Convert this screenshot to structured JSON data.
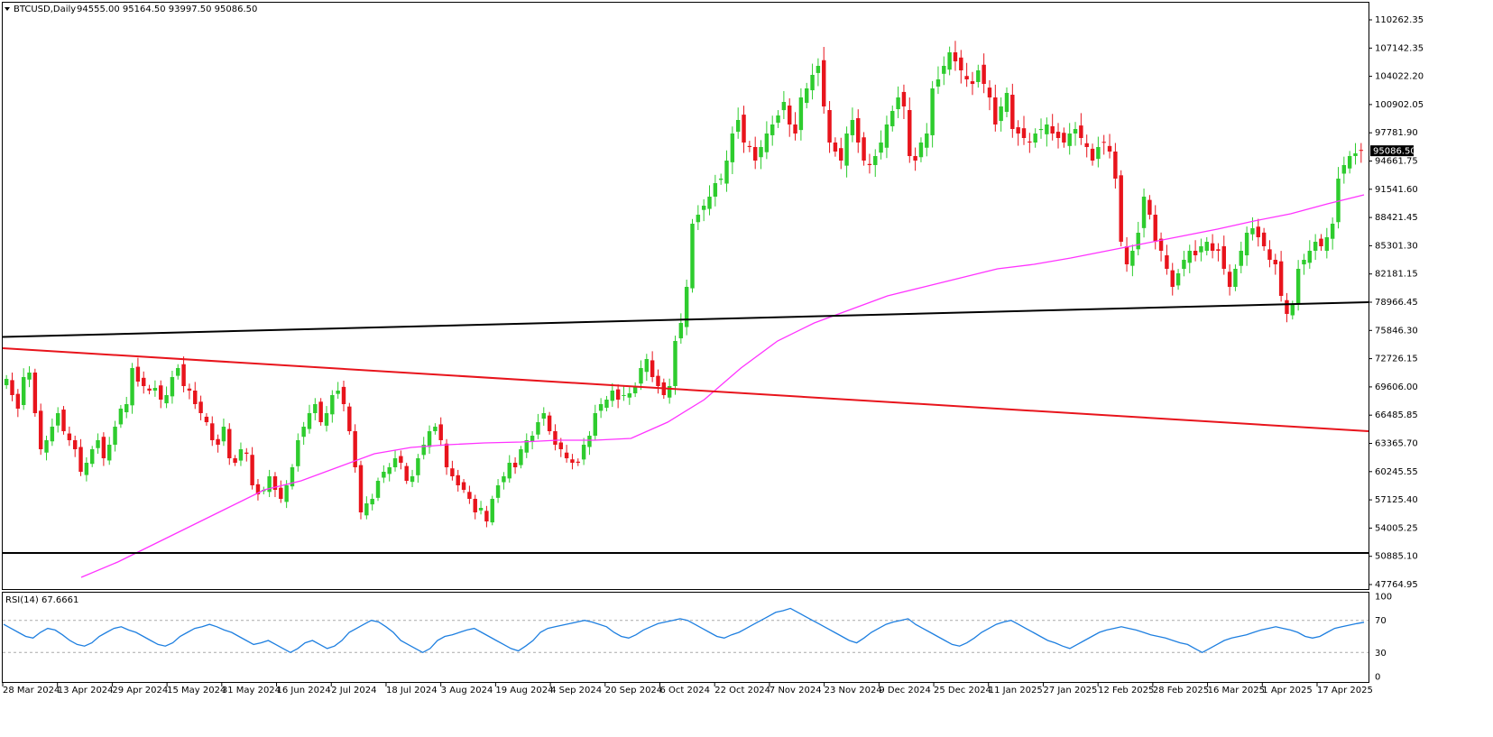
{
  "header": {
    "symbol_label": "BTCUSD,Daily",
    "ohlc_label": "94555.00 95164.50 93997.50 95086.50"
  },
  "rsi_panel": {
    "label": "RSI(14) 67.6661",
    "levels": [
      "100",
      "70",
      "30",
      "0"
    ]
  },
  "price_axis": {
    "ticks": [
      "110262.35",
      "107142.35",
      "104022.20",
      "100902.05",
      "97781.90",
      "94661.75",
      "91541.60",
      "88421.45",
      "85301.30",
      "82181.15",
      "78966.45",
      "75846.30",
      "72726.15",
      "69606.00",
      "66485.85",
      "63365.70",
      "60245.55",
      "57125.40",
      "54005.25",
      "50885.10",
      "47764.95"
    ],
    "current_price_label": "95086.50"
  },
  "time_axis": {
    "ticks": [
      "28 Mar 2024",
      "13 Apr 2024",
      "29 Apr 2024",
      "15 May 2024",
      "31 May 2024",
      "16 Jun 2024",
      "2 Jul 2024",
      "18 Jul 2024",
      "3 Aug 2024",
      "19 Aug 2024",
      "4 Sep 2024",
      "20 Sep 2024",
      "6 Oct 2024",
      "22 Oct 2024",
      "7 Nov 2024",
      "23 Nov 2024",
      "9 Dec 2024",
      "25 Dec 2024",
      "11 Jan 2025",
      "27 Jan 2025",
      "12 Feb 2025",
      "28 Feb 2025",
      "16 Mar 2025",
      "1 Apr 2025",
      "17 Apr 2025"
    ]
  },
  "colors": {
    "up_candle": "#2ecc2e",
    "down_candle": "#e8141c",
    "ma_line": "#ff33ff",
    "rsi_line": "#1e7fe0",
    "trendline_red": "#e8141c",
    "trendline_black": "#000000",
    "grid": "#aaaaaa"
  },
  "chart_data": {
    "type": "candlestick",
    "symbol": "BTCUSD",
    "timeframe": "Daily",
    "ylim": [
      46500,
      111500
    ],
    "closes": [
      69800,
      68000,
      66500,
      70000,
      70500,
      66000,
      62000,
      63000,
      64500,
      66000,
      64000,
      63000,
      62000,
      59500,
      60500,
      62000,
      63000,
      61000,
      62500,
      64500,
      66500,
      67000,
      71000,
      69500,
      69000,
      68500,
      68800,
      67500,
      68000,
      70000,
      71000,
      69000,
      68500,
      67000,
      66000,
      65000,
      63000,
      62500,
      64500,
      61000,
      60500,
      62000,
      61500,
      58000,
      57000,
      57500,
      59000,
      57500,
      56500,
      58000,
      60000,
      63000,
      64500,
      66000,
      67000,
      65000,
      66000,
      68000,
      68500,
      67000,
      64000,
      60000,
      55000,
      56000,
      56500,
      58500,
      59500,
      60000,
      61000,
      60500,
      58500,
      59000,
      61000,
      62500,
      64000,
      64500,
      63000,
      60000,
      59000,
      58000,
      57500,
      56500,
      55000,
      55500,
      54000,
      56500,
      58000,
      59000,
      60500,
      60000,
      62000,
      63000,
      63500,
      65000,
      66000,
      64000,
      62500,
      62000,
      61000,
      60500,
      60500,
      62500,
      63500,
      66000,
      67000,
      67500,
      68500,
      67500,
      68000,
      68200,
      69000,
      71000,
      72000,
      70000,
      69000,
      68000,
      69000,
      74000,
      76000,
      80000,
      87000,
      88000,
      89000,
      90000,
      91500,
      92000,
      94000,
      97000,
      98500,
      96000,
      95500,
      94000,
      95500,
      97000,
      98000,
      99000,
      100500,
      98000,
      97000,
      101000,
      102000,
      103500,
      104500,
      100000,
      96000,
      95000,
      94000,
      97000,
      98500,
      96000,
      94000,
      93500,
      94500,
      96000,
      98000,
      99500,
      101000,
      100000,
      94500,
      94000,
      96000,
      97000,
      102000,
      103000,
      104500,
      106000,
      105000,
      104000,
      103000,
      102500,
      104000,
      102500,
      101000,
      98000,
      100000,
      101500,
      97500,
      97000,
      96500,
      96000,
      97000,
      97500,
      98000,
      97000,
      96500,
      96000,
      97000,
      97500,
      96500,
      95500,
      94000,
      95500,
      96000,
      95000,
      92000,
      85000,
      82500,
      84000,
      86000,
      90000,
      88000,
      85000,
      84000,
      82000,
      80000,
      81500,
      83000,
      84000,
      83500,
      84500,
      85000,
      84000,
      84000,
      82000,
      80000,
      82000,
      84000,
      86000,
      86500,
      85500,
      84500,
      83000,
      82500,
      79000,
      77000,
      78000,
      82000,
      83000,
      84000,
      85000,
      84500,
      85500,
      87000,
      92000,
      93500,
      94500,
      94800,
      95086.5
    ],
    "ma_values": [
      47800,
      49500,
      51500,
      53500,
      55500,
      57500,
      58500,
      60000,
      61500,
      62200,
      62500,
      62700,
      62800,
      63000,
      63000,
      63200,
      65000,
      67500,
      71000,
      74000,
      76000,
      77500,
      79000,
      80000,
      81000,
      82000,
      82500,
      83200,
      84000,
      84800,
      85600,
      86400,
      87300,
      88100,
      89200,
      90200
    ],
    "trendlines": [
      {
        "name": "black-upper",
        "start_value": 74450,
        "end_value": 78300
      },
      {
        "name": "red-descending",
        "start_value": 73200,
        "end_value": 64000
      },
      {
        "name": "black-support",
        "start_value": 50500,
        "end_value": 50500
      }
    ],
    "rsi_values": [
      65,
      60,
      55,
      50,
      48,
      55,
      60,
      58,
      52,
      45,
      40,
      38,
      42,
      50,
      55,
      60,
      62,
      58,
      55,
      50,
      45,
      40,
      38,
      42,
      50,
      55,
      60,
      62,
      65,
      62,
      58,
      55,
      50,
      45,
      40,
      42,
      45,
      40,
      35,
      30,
      35,
      42,
      45,
      40,
      35,
      38,
      45,
      55,
      60,
      65,
      70,
      68,
      62,
      55,
      45,
      40,
      35,
      30,
      35,
      45,
      50,
      52,
      55,
      58,
      60,
      55,
      50,
      45,
      40,
      35,
      32,
      38,
      45,
      55,
      60,
      62,
      64,
      66,
      68,
      70,
      68,
      65,
      62,
      55,
      50,
      48,
      52,
      58,
      62,
      66,
      68,
      70,
      72,
      70,
      65,
      60,
      55,
      50,
      48,
      52,
      55,
      60,
      65,
      70,
      75,
      80,
      82,
      85,
      80,
      75,
      70,
      65,
      60,
      55,
      50,
      45,
      42,
      48,
      55,
      60,
      65,
      68,
      70,
      72,
      65,
      60,
      55,
      50,
      45,
      40,
      38,
      42,
      48,
      55,
      60,
      65,
      68,
      70,
      65,
      60,
      55,
      50,
      45,
      42,
      38,
      35,
      40,
      45,
      50,
      55,
      58,
      60,
      62,
      60,
      58,
      55,
      52,
      50,
      48,
      45,
      42,
      40,
      35,
      30,
      35,
      40,
      45,
      48,
      50,
      52,
      55,
      58,
      60,
      62,
      60,
      58,
      55,
      50,
      48,
      50,
      55,
      60,
      62,
      64,
      66,
      67.6661
    ]
  }
}
